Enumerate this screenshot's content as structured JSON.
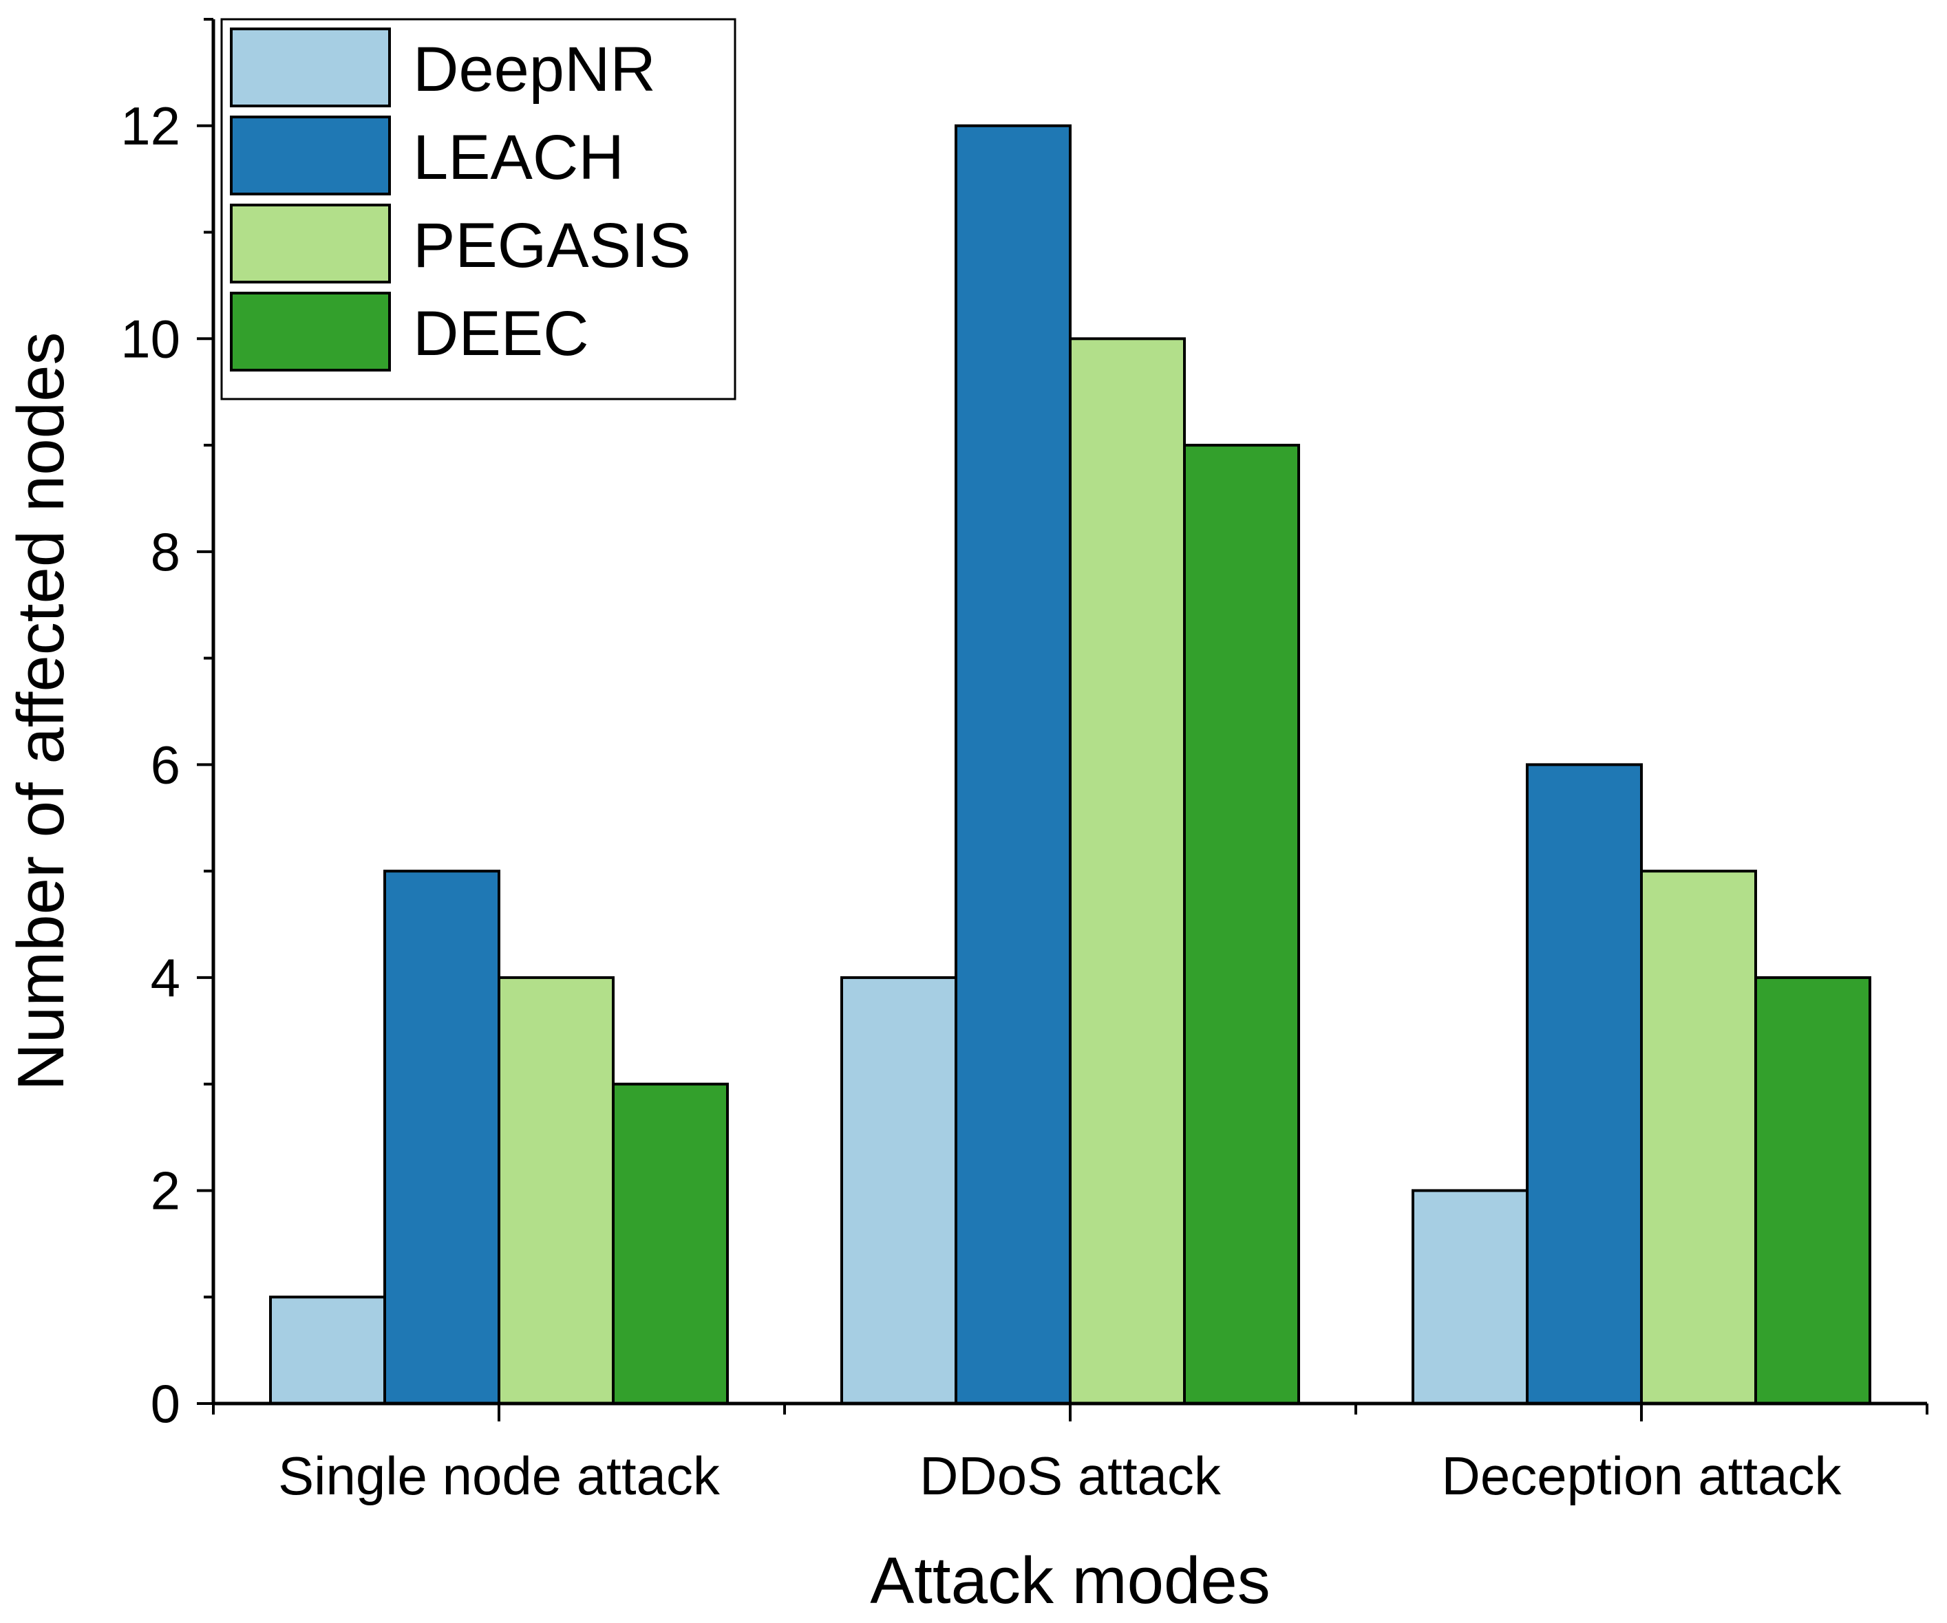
{
  "chart_data": {
    "type": "bar",
    "title": "",
    "xlabel": "Attack modes",
    "ylabel": "Number of affected nodes",
    "categories": [
      "Single node attack",
      "DDoS attack",
      "Deception attack"
    ],
    "series": [
      {
        "name": "DeepNR",
        "color": "#a6cee3",
        "values": [
          1,
          4,
          2
        ]
      },
      {
        "name": "LEACH",
        "color": "#1f78b4",
        "values": [
          5,
          12,
          6
        ]
      },
      {
        "name": "PEGASIS",
        "color": "#b2df8a",
        "values": [
          4,
          10,
          5
        ]
      },
      {
        "name": "DEEC",
        "color": "#33a02c",
        "values": [
          3,
          9,
          4
        ]
      }
    ],
    "ylim": [
      0,
      13
    ],
    "yticks": [
      0,
      2,
      4,
      6,
      8,
      10,
      12
    ],
    "grid": false,
    "legend_position": "top-left"
  }
}
